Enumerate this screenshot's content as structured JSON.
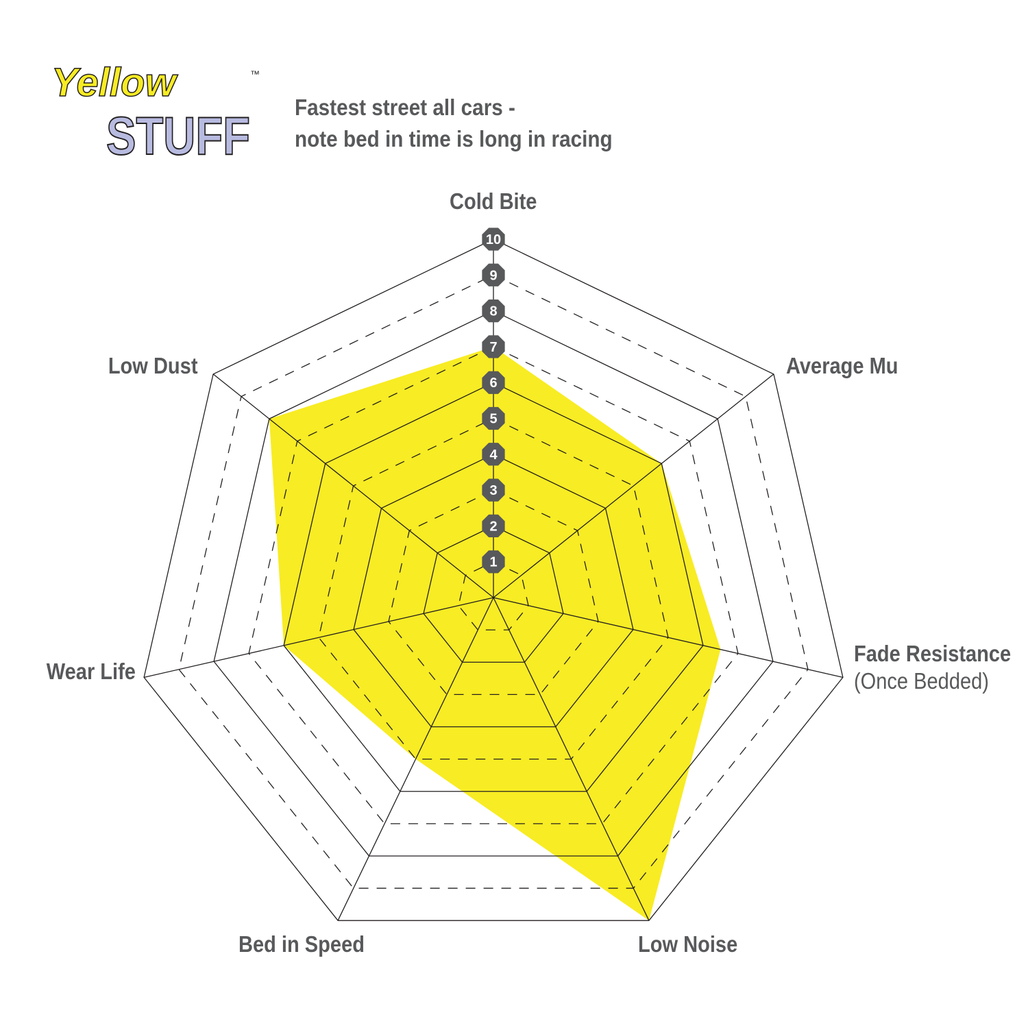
{
  "logo": {
    "text_top": "Yellow",
    "text_bottom": "STUFF",
    "trademark": "™"
  },
  "chart_data": {
    "type": "radar",
    "title": "Fastest street all cars -",
    "subtitle": "note bed in time is long in racing",
    "axes": [
      "Cold Bite",
      "Average Mu",
      "Fade Resistance",
      "Low Noise",
      "Bed in Speed",
      "Wear Life",
      "Low Dust"
    ],
    "axis_note": {
      "Fade Resistance": "(Once Bedded)"
    },
    "scale": {
      "min": 0,
      "max": 10,
      "ticks": [
        1,
        2,
        3,
        4,
        5,
        6,
        7,
        8,
        9,
        10
      ]
    },
    "grid": "solid at even levels, dashed at odd levels",
    "values": [
      7,
      6,
      6.5,
      10,
      5,
      6,
      8
    ],
    "colors": {
      "fill": "#f8ec24",
      "marker": "#58595b",
      "text": "#58595b",
      "grid": "#231f20"
    }
  }
}
